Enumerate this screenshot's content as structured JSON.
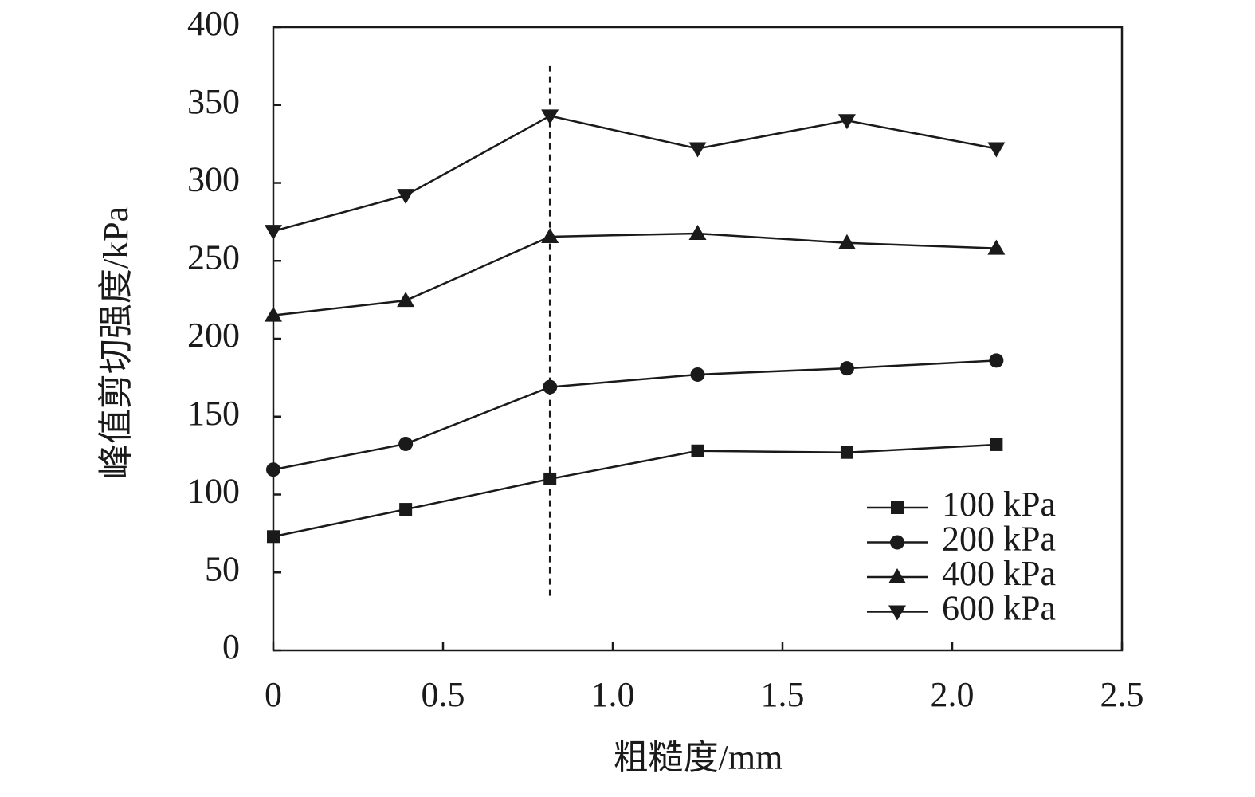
{
  "chart_data": {
    "type": "line",
    "x_label": "粗糙度/mm",
    "y_label": "峰值剪切强度/kPa",
    "x": [
      0,
      0.39,
      0.815,
      1.25,
      1.69,
      2.13
    ],
    "series": [
      {
        "name": "100 kPa",
        "color": "#1a1a1a",
        "marker": "square",
        "values": [
          73,
          90.5,
          110,
          128,
          127,
          132
        ]
      },
      {
        "name": "200 kPa",
        "color": "#1a1a1a",
        "marker": "circle",
        "values": [
          116,
          132.5,
          169,
          177,
          181,
          186
        ]
      },
      {
        "name": "400 kPa",
        "color": "#1a1a1a",
        "marker": "triangle-up",
        "values": [
          215,
          224.5,
          265.5,
          267.5,
          261.5,
          258
        ]
      },
      {
        "name": "600 kPa",
        "color": "#1a1a1a",
        "marker": "triangle-down",
        "values": [
          269,
          292,
          343,
          322,
          340,
          322
        ]
      }
    ],
    "reference_line": {
      "x": 0.815,
      "y": [
        35,
        375
      ]
    },
    "xlim": [
      0,
      2.5
    ],
    "xticks": [
      0,
      0.5,
      {
        "value": 1,
        "label": "1.0"
      },
      1.5,
      {
        "value": 2,
        "label": "2.0"
      },
      2.5
    ],
    "ylim": [
      0,
      400
    ],
    "yticks": [
      0,
      50,
      100,
      150,
      200,
      250,
      300,
      350,
      400
    ],
    "legend": "lower right",
    "grid": false
  }
}
